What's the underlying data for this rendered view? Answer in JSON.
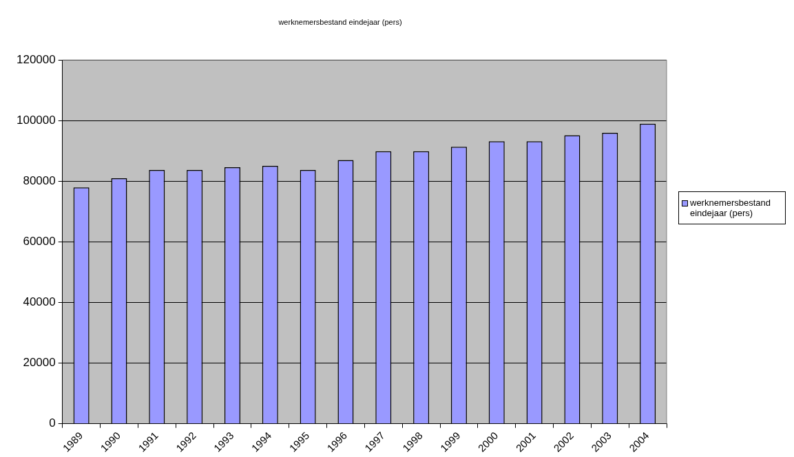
{
  "chart_data": {
    "type": "bar",
    "title": "werknemersbestand eindejaar (pers)",
    "categories": [
      "1989",
      "1990",
      "1991",
      "1992",
      "1993",
      "1994",
      "1995",
      "1996",
      "1997",
      "1998",
      "1999",
      "2000",
      "2001",
      "2002",
      "2003",
      "2004"
    ],
    "series": [
      {
        "name": "werknemersbestand eindejaar (pers)",
        "color": "#9999ff",
        "values": [
          78000,
          81000,
          83700,
          83700,
          84600,
          85100,
          83700,
          87000,
          89900,
          89900,
          91400,
          93200,
          93200,
          95200,
          96000,
          99000
        ]
      }
    ],
    "ylim": [
      0,
      120000
    ],
    "yticks": [
      0,
      20000,
      40000,
      60000,
      80000,
      100000,
      120000
    ],
    "grid": "y",
    "legend": "right"
  }
}
